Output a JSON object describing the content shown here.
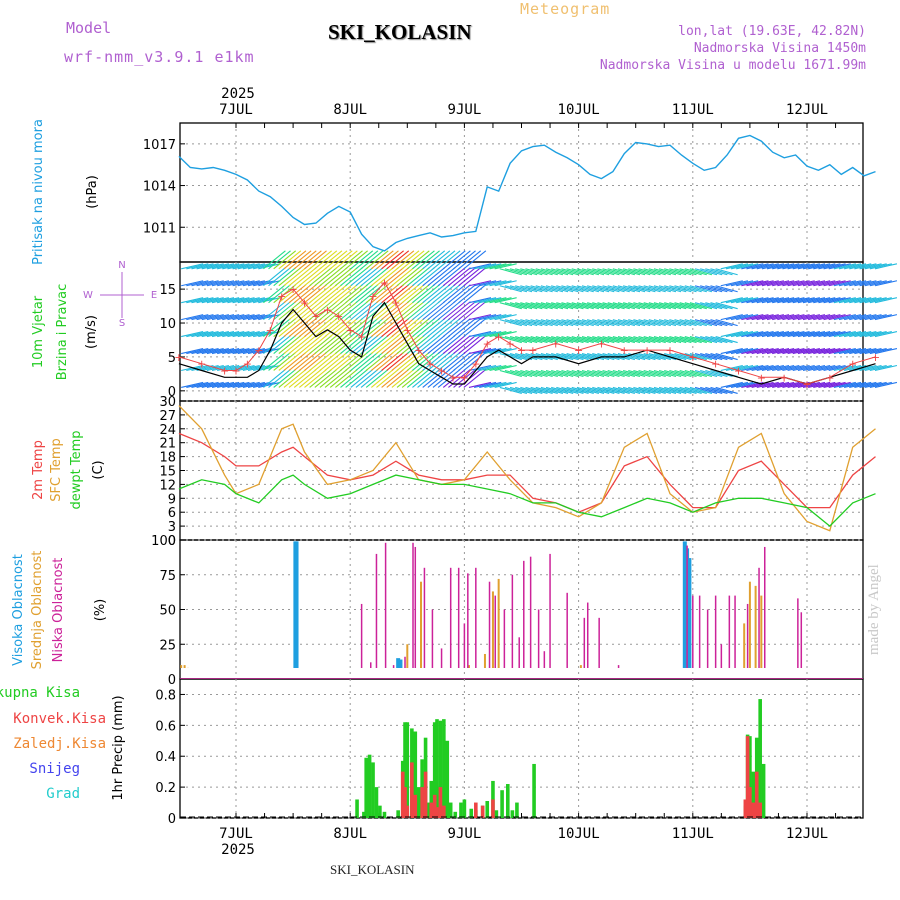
{
  "header": {
    "model_label": "Model",
    "model_value": "wrf-nmm_v3.9.1 e1km",
    "meteogram_label": "Meteogram",
    "station": "SKI_KOLASIN",
    "coords": "lon,lat (19.63E, 42.82N)",
    "altitude": "Nadmorska Visina 1450m",
    "model_altitude": "Nadmorska Visina u modelu 1671.99m"
  },
  "year_label": "2025",
  "days": [
    "7JUL",
    "8JUL",
    "9JUL",
    "10JUL",
    "11JUL",
    "12JUL"
  ],
  "footer_station": "SKI_KOLASIN",
  "watermark": "made by Angel",
  "colors": {
    "pressure": "#1e9fe0",
    "wind_label": "#22cc22",
    "wind_speed": "#000000",
    "gust": "#ee4444",
    "temp_2m": "#ee4444",
    "temp_sfc": "#e0a030",
    "dewpoint": "#22cc22",
    "cloud_high": "#1e9fe0",
    "cloud_mid": "#e0a030",
    "cloud_low": "#cc2299",
    "precip_total": "#22cc22",
    "precip_conv": "#ee4444",
    "precip_frz": "#ee8833",
    "snow": "#4444ee",
    "hail": "#22cccc"
  },
  "chart_data": [
    {
      "type": "line",
      "panel": "pressure",
      "ylabel_lines": [
        "Pritisak na nivou mora",
        "(hPa)"
      ],
      "yticks": [
        1011,
        1014,
        1017
      ],
      "ylim": [
        1008.5,
        1018.5
      ],
      "x_unit": "days from 7JUL 00UTC",
      "series": [
        {
          "x": [
            -0.5,
            -0.4,
            -0.3,
            -0.2,
            -0.1,
            0,
            0.1,
            0.2,
            0.3,
            0.4,
            0.5,
            0.6,
            0.7,
            0.8,
            0.9,
            1.0,
            1.1,
            1.2,
            1.3,
            1.4,
            1.5,
            1.6,
            1.7,
            1.8,
            1.9,
            2.0,
            2.1,
            2.2,
            2.3,
            2.4,
            2.5,
            2.6,
            2.7,
            2.8,
            2.9,
            3.0,
            3.1,
            3.2,
            3.3,
            3.4,
            3.5,
            3.6,
            3.7,
            3.8,
            3.9,
            4.0,
            4.1,
            4.2,
            4.3,
            4.4,
            4.5,
            4.6,
            4.7,
            4.8,
            4.9,
            5.0,
            5.1,
            5.2,
            5.3,
            5.4,
            5.5,
            5.6
          ],
          "values": [
            1016.1,
            1015.3,
            1015.2,
            1015.3,
            1015.1,
            1014.8,
            1014.4,
            1013.6,
            1013.2,
            1012.5,
            1011.7,
            1011.2,
            1011.3,
            1012.0,
            1012.5,
            1012.1,
            1010.5,
            1009.6,
            1009.3,
            1009.9,
            1010.2,
            1010.4,
            1010.6,
            1010.3,
            1010.4,
            1010.6,
            1010.7,
            1013.9,
            1013.6,
            1015.6,
            1016.5,
            1016.8,
            1016.9,
            1016.4,
            1016.0,
            1015.5,
            1014.8,
            1014.5,
            1015.0,
            1016.3,
            1017.1,
            1017.0,
            1016.8,
            1016.9,
            1016.2,
            1015.6,
            1015.1,
            1015.3,
            1016.2,
            1017.4,
            1017.6,
            1017.2,
            1016.4,
            1016.0,
            1016.2,
            1015.4,
            1015.1,
            1015.5,
            1014.8,
            1015.3,
            1014.7,
            1015.0
          ]
        }
      ]
    },
    {
      "type": "line",
      "panel": "wind",
      "ylabel_lines": [
        "10m Vjetar",
        "Brzina i Pravac",
        "(m/s)"
      ],
      "compass": [
        "N",
        "W",
        "E",
        "S"
      ],
      "yticks": [
        0,
        5,
        10,
        15
      ],
      "ylim": [
        -1.5,
        19
      ],
      "series": [
        {
          "name": "speed",
          "x": [
            -0.5,
            -0.3,
            -0.1,
            0,
            0.1,
            0.2,
            0.3,
            0.4,
            0.5,
            0.6,
            0.7,
            0.8,
            0.9,
            1.0,
            1.1,
            1.2,
            1.3,
            1.4,
            1.5,
            1.6,
            1.7,
            1.8,
            1.9,
            2.0,
            2.1,
            2.2,
            2.3,
            2.4,
            2.5,
            2.6,
            2.8,
            3.0,
            3.2,
            3.4,
            3.6,
            3.8,
            4.0,
            4.2,
            4.4,
            4.6,
            4.8,
            5.0,
            5.2,
            5.4,
            5.6
          ],
          "values": [
            4,
            3,
            2,
            2,
            2,
            3,
            6,
            10,
            12,
            10,
            8,
            9,
            8,
            6,
            5,
            11,
            13,
            10,
            7,
            4,
            3,
            2,
            1,
            1,
            3,
            5,
            6,
            5,
            4,
            5,
            5,
            4,
            5,
            5,
            6,
            5,
            4,
            3,
            2,
            1,
            2,
            1,
            2,
            3,
            4
          ]
        },
        {
          "name": "gust",
          "x": [
            -0.5,
            -0.3,
            -0.1,
            0,
            0.1,
            0.2,
            0.3,
            0.4,
            0.5,
            0.6,
            0.7,
            0.8,
            0.9,
            1.0,
            1.1,
            1.2,
            1.3,
            1.4,
            1.5,
            1.6,
            1.7,
            1.8,
            1.9,
            2.0,
            2.1,
            2.2,
            2.3,
            2.4,
            2.5,
            2.6,
            2.8,
            3.0,
            3.2,
            3.4,
            3.6,
            3.8,
            4.0,
            4.2,
            4.4,
            4.6,
            4.8,
            5.0,
            5.2,
            5.4,
            5.6
          ],
          "values": [
            5,
            4,
            3,
            3,
            4,
            6,
            9,
            14,
            15,
            13,
            11,
            12,
            11,
            9,
            8,
            14,
            16,
            13,
            9,
            6,
            4,
            3,
            2,
            2,
            4,
            7,
            8,
            7,
            6,
            6,
            7,
            6,
            7,
            6,
            6,
            6,
            5,
            4,
            3,
            2,
            2,
            1,
            2,
            4,
            5
          ]
        }
      ]
    },
    {
      "type": "line",
      "panel": "temperature",
      "ylabel_lines": [
        "2m Temp",
        "SFC Temp",
        "dewpt Temp",
        "(C)"
      ],
      "yticks": [
        0,
        3,
        6,
        9,
        12,
        15,
        18,
        21,
        24,
        27,
        30
      ],
      "ylim": [
        0,
        30
      ],
      "series": [
        {
          "name": "2m Temp",
          "x": [
            -0.5,
            -0.3,
            -0.1,
            0,
            0.2,
            0.4,
            0.5,
            0.6,
            0.8,
            1.0,
            1.2,
            1.4,
            1.6,
            1.8,
            2.0,
            2.2,
            2.4,
            2.6,
            2.8,
            3.0,
            3.2,
            3.4,
            3.6,
            3.8,
            4.0,
            4.2,
            4.4,
            4.6,
            4.8,
            5.0,
            5.2,
            5.4,
            5.6
          ],
          "values": [
            23,
            21,
            18,
            16,
            16,
            19,
            20,
            18,
            14,
            13,
            14,
            17,
            14,
            13,
            13,
            14,
            14,
            9,
            8,
            6,
            8,
            16,
            18,
            12,
            7,
            7,
            15,
            17,
            12,
            7,
            7,
            14,
            18
          ]
        },
        {
          "name": "SFC Temp",
          "x": [
            -0.5,
            -0.3,
            -0.1,
            0,
            0.2,
            0.4,
            0.5,
            0.6,
            0.8,
            1.0,
            1.2,
            1.4,
            1.6,
            1.8,
            2.0,
            2.2,
            2.4,
            2.6,
            2.8,
            3.0,
            3.2,
            3.4,
            3.6,
            3.8,
            4.0,
            4.2,
            4.4,
            4.6,
            4.8,
            5.0,
            5.2,
            5.4,
            5.6
          ],
          "values": [
            29,
            24,
            14,
            10,
            12,
            24,
            25,
            19,
            12,
            13,
            15,
            21,
            13,
            12,
            13,
            19,
            13,
            8,
            7,
            5,
            8,
            20,
            23,
            10,
            6,
            7,
            20,
            23,
            10,
            4,
            2,
            20,
            24
          ]
        },
        {
          "name": "dewpt Temp",
          "x": [
            -0.5,
            -0.3,
            -0.1,
            0,
            0.2,
            0.4,
            0.5,
            0.6,
            0.8,
            1.0,
            1.2,
            1.4,
            1.6,
            1.8,
            2.0,
            2.2,
            2.4,
            2.6,
            2.8,
            3.0,
            3.2,
            3.4,
            3.6,
            3.8,
            4.0,
            4.2,
            4.4,
            4.6,
            4.8,
            5.0,
            5.2,
            5.4,
            5.6
          ],
          "values": [
            11,
            13,
            12,
            10,
            8,
            13,
            14,
            12,
            9,
            10,
            12,
            14,
            13,
            12,
            12,
            11,
            10,
            8,
            8,
            6,
            5,
            7,
            9,
            8,
            6,
            8,
            9,
            9,
            8,
            7,
            3,
            8,
            10
          ]
        }
      ]
    },
    {
      "type": "bar",
      "panel": "clouds",
      "ylabel_lines": [
        "Visoka Oblacnost",
        "Srednja Oblacnost",
        "Niska Oblacnost",
        "(%)"
      ],
      "yticks": [
        0,
        25,
        50,
        75,
        100
      ],
      "ylim": [
        0,
        100
      ],
      "series": [
        {
          "name": "Visoka Oblacnost",
          "x": [
            0.52,
            0.53,
            1.42,
            1.44,
            3.93,
            3.95,
            3.97
          ],
          "values": [
            99,
            99,
            15,
            14,
            99,
            94,
            87
          ]
        },
        {
          "name": "Srednja Oblacnost",
          "x": [
            -0.48,
            -0.45,
            -0.42,
            1.5,
            1.62,
            2.04,
            2.18,
            2.25,
            2.3,
            3.02,
            4.45,
            4.5,
            4.55,
            4.6
          ],
          "values": [
            10,
            10,
            8,
            25,
            70,
            10,
            18,
            63,
            72,
            10,
            40,
            70,
            67,
            60
          ]
        },
        {
          "name": "Niska Oblacnost",
          "x": [
            1.1,
            1.18,
            1.23,
            1.31,
            1.38,
            1.48,
            1.55,
            1.57,
            1.65,
            1.72,
            1.8,
            1.88,
            1.95,
            2.0,
            2.03,
            2.1,
            2.22,
            2.27,
            2.35,
            2.42,
            2.48,
            2.52,
            2.58,
            2.65,
            2.7,
            2.75,
            2.9,
            3.05,
            3.08,
            3.18,
            3.35,
            3.95,
            4.0,
            4.06,
            4.13,
            4.2,
            4.25,
            4.32,
            4.37,
            4.48,
            4.58,
            4.63,
            4.92,
            4.95
          ],
          "values": [
            54,
            12,
            90,
            98,
            10,
            16,
            98,
            95,
            80,
            50,
            22,
            80,
            80,
            40,
            76,
            80,
            70,
            60,
            50,
            75,
            30,
            85,
            88,
            50,
            20,
            90,
            62,
            44,
            55,
            44,
            10,
            96,
            60,
            60,
            50,
            60,
            25,
            60,
            60,
            54,
            80,
            95,
            58,
            48
          ]
        }
      ]
    },
    {
      "type": "bar",
      "panel": "precipitation",
      "legend": [
        "Ukupna Kisa",
        "Konvek.Kisa",
        "Zaledj.Kisa",
        "Snijeg",
        "Grad"
      ],
      "ylabel": "1hr Precip (mm)",
      "yticks": [
        0,
        0.2,
        0.4,
        0.6,
        0.8
      ],
      "ylim": [
        0,
        0.9
      ],
      "series": [
        {
          "name": "Ukupna Kisa",
          "x": [
            1.06,
            1.12,
            1.14,
            1.17,
            1.2,
            1.23,
            1.26,
            1.3,
            1.42,
            1.46,
            1.48,
            1.5,
            1.54,
            1.57,
            1.6,
            1.63,
            1.66,
            1.68,
            1.71,
            1.74,
            1.76,
            1.79,
            1.82,
            1.85,
            1.88,
            1.92,
            1.97,
            2.0,
            2.06,
            2.1,
            2.16,
            2.2,
            2.25,
            2.28,
            2.33,
            2.38,
            2.42,
            2.46,
            2.61,
            4.46,
            4.48,
            4.5,
            4.53,
            4.56,
            4.59,
            4.62
          ],
          "values": [
            0.12,
            0.04,
            0.39,
            0.41,
            0.36,
            0.2,
            0.08,
            0.04,
            0.05,
            0.37,
            0.62,
            0.62,
            0.58,
            0.56,
            0.2,
            0.38,
            0.52,
            0.1,
            0.24,
            0.62,
            0.64,
            0.63,
            0.64,
            0.5,
            0.1,
            0.04,
            0.1,
            0.12,
            0.06,
            0.05,
            0.08,
            0.11,
            0.24,
            0.05,
            0.18,
            0.22,
            0.05,
            0.1,
            0.35,
            0.08,
            0.54,
            0.53,
            0.3,
            0.52,
            0.77,
            0.35
          ]
        },
        {
          "name": "Konvek.Kisa",
          "x": [
            1.46,
            1.48,
            1.5,
            1.54,
            1.57,
            1.63,
            1.66,
            1.71,
            1.74,
            1.76,
            1.79,
            1.82,
            2.1,
            2.16,
            2.25,
            4.46,
            4.48,
            4.5,
            4.53,
            4.56,
            4.59
          ],
          "values": [
            0.3,
            0.2,
            0.08,
            0.36,
            0.15,
            0.2,
            0.3,
            0.1,
            0.15,
            0.07,
            0.2,
            0.08,
            0.1,
            0.08,
            0.12,
            0.12,
            0.53,
            0.2,
            0.1,
            0.3,
            0.1
          ]
        }
      ]
    }
  ]
}
